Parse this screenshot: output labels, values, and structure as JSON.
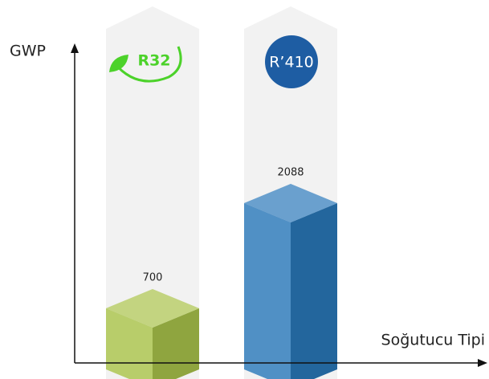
{
  "chart_data": {
    "type": "bar",
    "ylabel": "GWP",
    "xlabel": "Soğutucu Tipi",
    "categories": [
      "R32",
      "R’410"
    ],
    "values": [
      700,
      2088
    ],
    "colors": [
      "#a9c24a",
      "#2a78b9"
    ]
  }
}
